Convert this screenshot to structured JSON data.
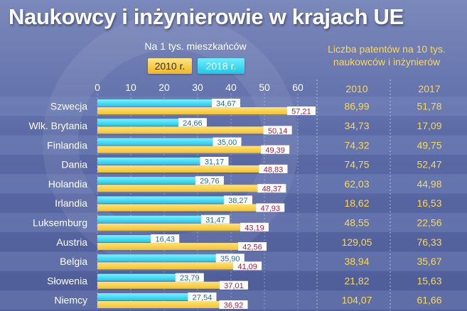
{
  "title": "Naukowcy i inżynierowie w krajach UE",
  "subtitle": "Na 1 tys. mieszkańców",
  "legend": [
    {
      "label": "2010 r.",
      "color": "#f5c22b"
    },
    {
      "label": "2018 r.",
      "color": "#26c6e8"
    }
  ],
  "patents_header": {
    "line1": "Liczba patentów na 10 tys.",
    "line2": "naukowców i inżynierów",
    "col_2010": "2010",
    "col_2017": "2017"
  },
  "colors": {
    "bar_2010": "#f5c22b",
    "bar_2018": "#26c6e8",
    "label_text": "#b5173a",
    "patent_text": "#ffd94a",
    "row_band": "#7f8ec2"
  },
  "chart_data": {
    "type": "bar",
    "orientation": "horizontal",
    "title": "Naukowcy i inżynierowie w krajach UE",
    "subtitle": "Na 1 tys. mieszkańców",
    "xlim": [
      0,
      60
    ],
    "xticks": [
      "0",
      "10",
      "20",
      "30",
      "40",
      "50",
      "60"
    ],
    "categories": [
      "Szwecja",
      "Wlk. Brytania",
      "Finlandia",
      "Dania",
      "Holandia",
      "Irlandia",
      "Luksemburg",
      "Austria",
      "Belgia",
      "Słowenia",
      "Niemcy"
    ],
    "series": [
      {
        "name": "2010 r.",
        "values": [
          57.21,
          50.14,
          49.39,
          48.83,
          48.37,
          47.93,
          43.19,
          42.56,
          41.09,
          37.01,
          36.92
        ],
        "labels": [
          "57,21",
          "50,14",
          "49,39",
          "48,83",
          "48,37",
          "47,93",
          "43,19",
          "42,56",
          "41,09",
          "37,01",
          "36,92"
        ]
      },
      {
        "name": "2018 r.",
        "values": [
          34.67,
          24.66,
          35.0,
          31.17,
          29.76,
          38.27,
          31.47,
          16.43,
          35.9,
          23.79,
          27.54
        ],
        "labels": [
          "34,67",
          "24,66",
          "35,00",
          "31,17",
          "29,76",
          "38,27",
          "31,47",
          "16,43",
          "35,90",
          "23,79",
          "27,54"
        ]
      }
    ],
    "patents_2010": [
      "86,99",
      "34,73",
      "74,32",
      "74,75",
      "62,03",
      "18,62",
      "48,55",
      "129,05",
      "38,94",
      "21,82",
      "104,07"
    ],
    "patents_2017": [
      "51,78",
      "17,09",
      "49,75",
      "52,47",
      "44,98",
      "16,53",
      "22,56",
      "76,33",
      "35,67",
      "15,63",
      "61,66"
    ],
    "grid": true
  }
}
